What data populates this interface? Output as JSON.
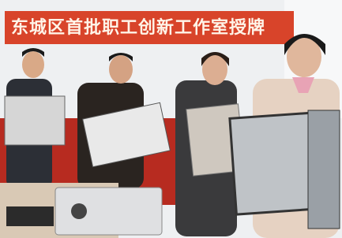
{
  "banner": {
    "text": "东城区首批职工创新工作室授牌"
  }
}
